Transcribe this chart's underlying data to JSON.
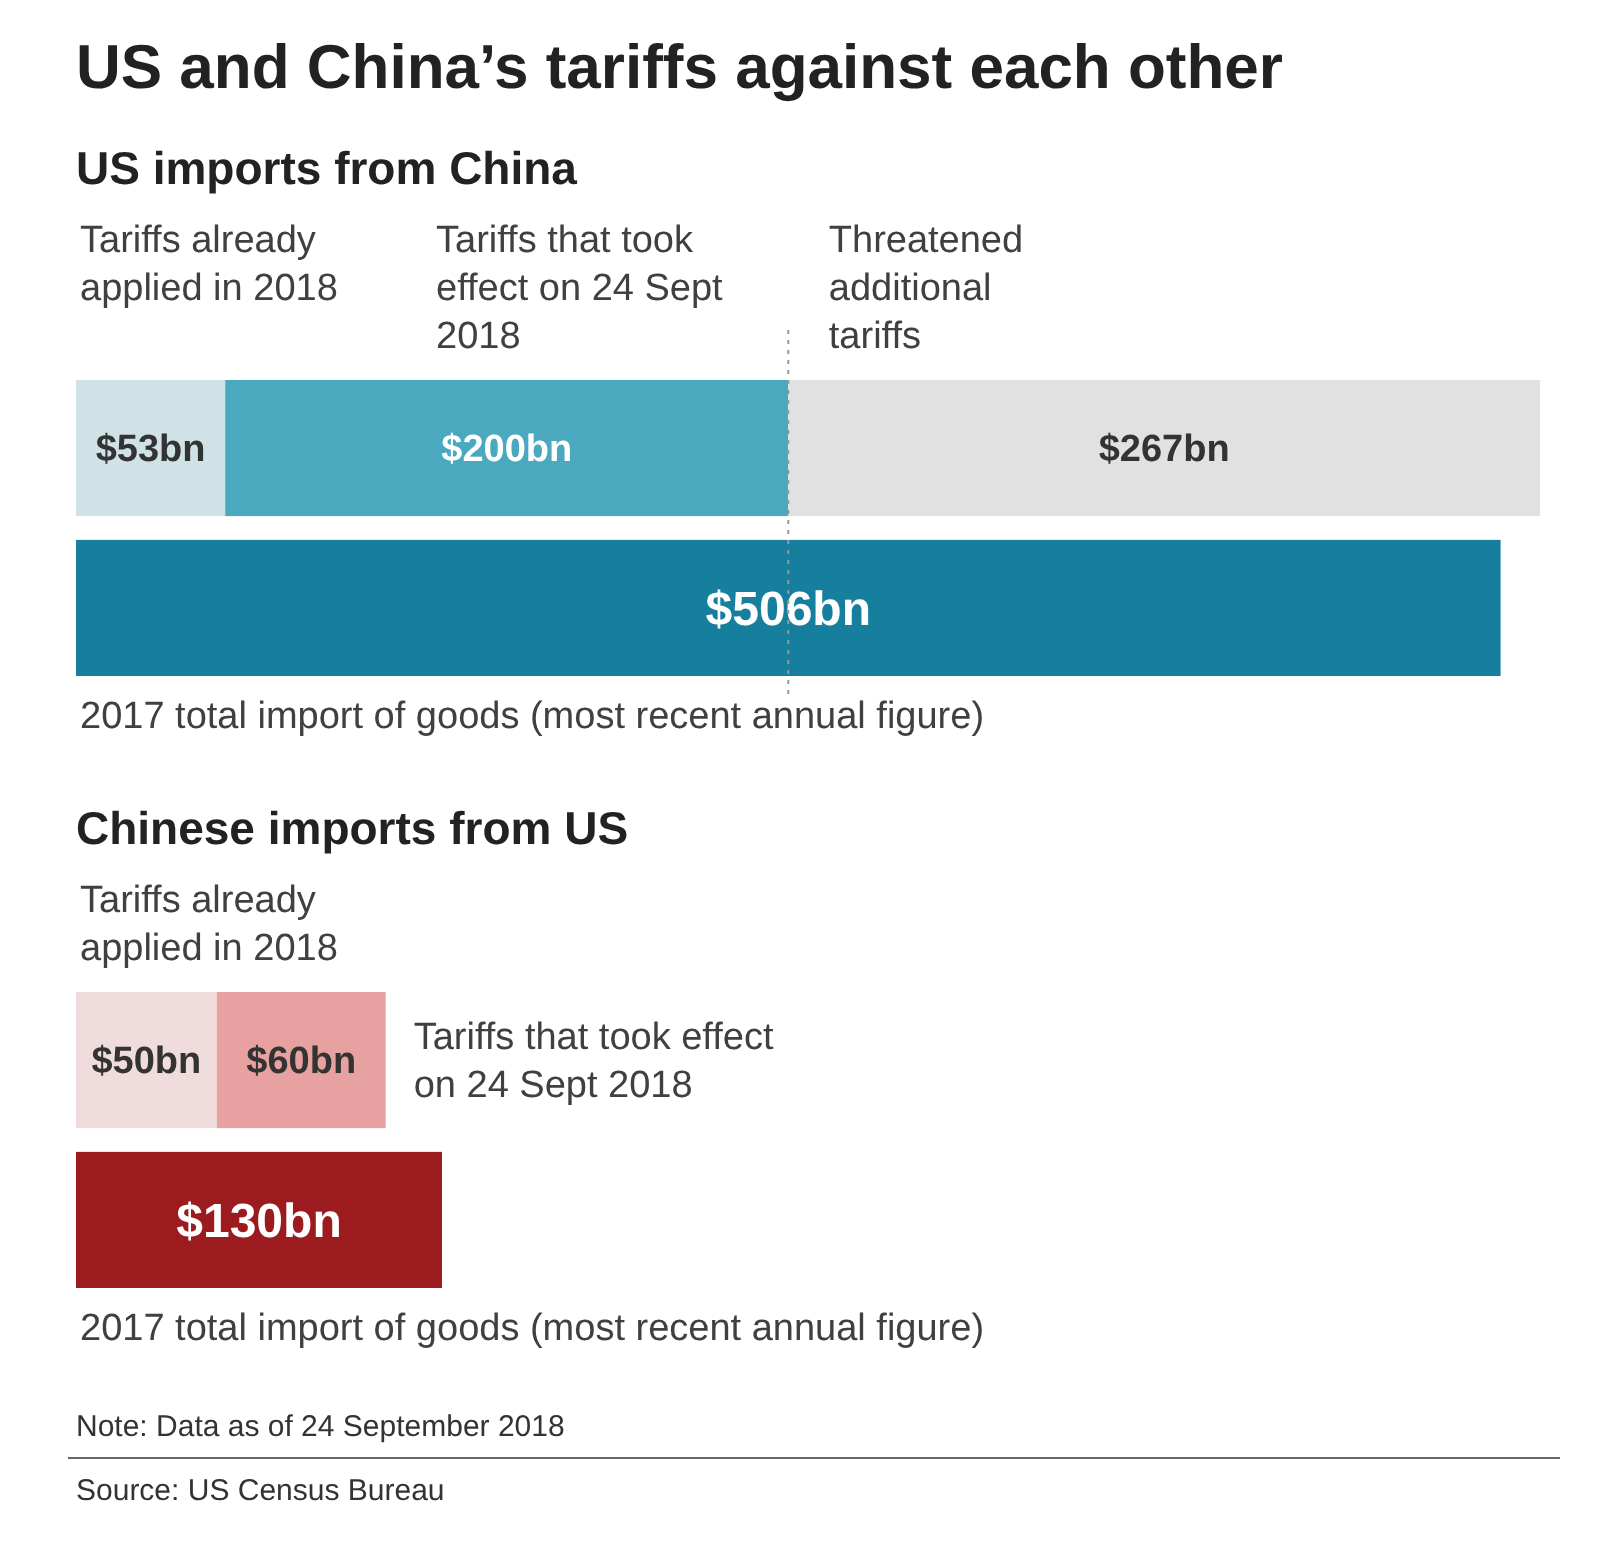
{
  "chart_data": [
    {
      "type": "bar",
      "orientation": "horizontal",
      "stacked": true,
      "title": "US and China’s tariffs against each other",
      "subtitle": "US imports from China",
      "categories": [
        null,
        null
      ],
      "series": [
        {
          "name": "Tariffs already applied in 2018",
          "color": "#cfe3e6",
          "values": [
            53,
            null
          ],
          "value_labels": [
            "$53bn",
            null
          ]
        },
        {
          "name": "Tariffs that took effect on 24 Sept 2018",
          "color": "#4aa8bf",
          "values": [
            200,
            null
          ],
          "value_labels": [
            "$200bn",
            null
          ]
        },
        {
          "name": "Threatened additional tariffs",
          "color": "#e1e1e1",
          "values": [
            267,
            null
          ],
          "value_labels": [
            "$267bn",
            null
          ]
        },
        {
          "name": "2017 total import of goods (most recent annual figure)",
          "color": "#177f9e",
          "values": [
            null,
            506
          ],
          "value_labels": [
            null,
            "$506bn"
          ]
        }
      ],
      "ref_lines": [
        {
          "axis": "x",
          "value": 253,
          "line_style": "dotted",
          "color": "#999999"
        }
      ]
    },
    {
      "type": "bar",
      "orientation": "horizontal",
      "stacked": true,
      "subtitle": "Chinese imports from US",
      "categories": [
        null,
        null
      ],
      "series": [
        {
          "name": "Tariffs already applied in 2018",
          "color": "#f0dcdc",
          "values": [
            50,
            null
          ],
          "value_labels": [
            "$50bn",
            null
          ]
        },
        {
          "name": "Tariffs that took effect on 24 Sept 2018",
          "color": "#e6a1a0",
          "values": [
            60,
            null
          ],
          "value_labels": [
            "$60bn",
            null
          ]
        },
        {
          "name": "2017 total import of goods (most recent annual figure)",
          "color": "#9b1b1f",
          "values": [
            null,
            130
          ],
          "value_labels": [
            null,
            "$130bn"
          ]
        }
      ],
      "annotations": [
        "Note: Data as of 24 September 2018",
        "Source: US Census Bureau"
      ]
    }
  ]
}
